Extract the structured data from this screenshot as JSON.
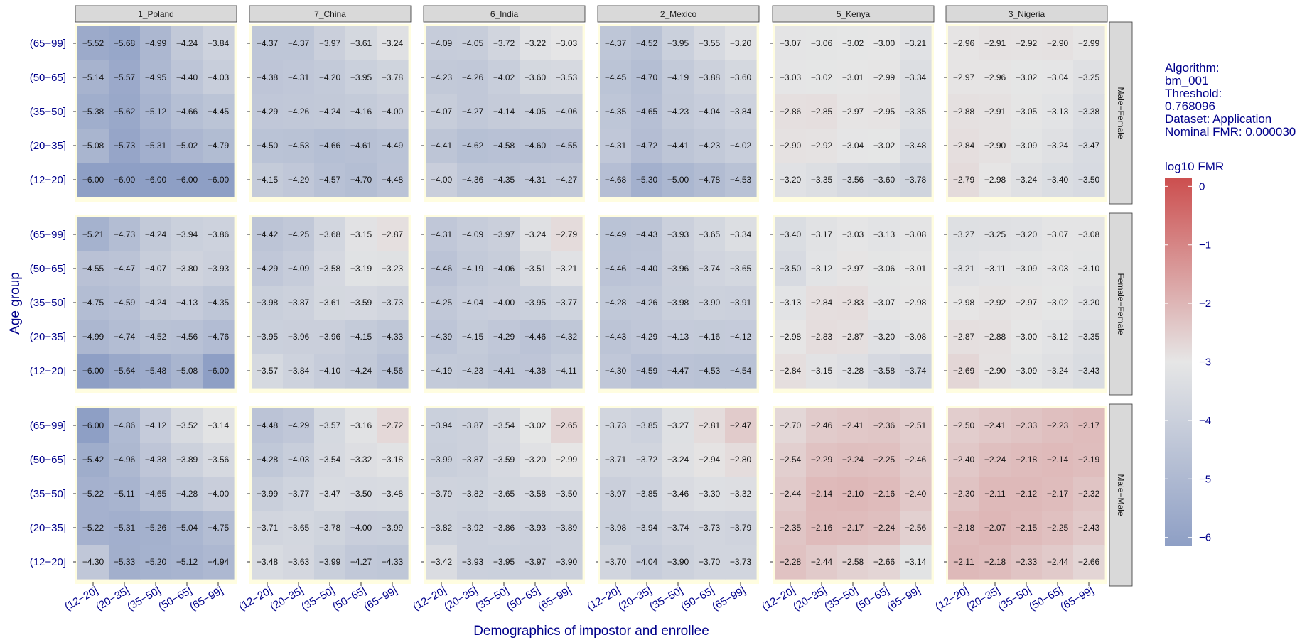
{
  "chart_data": {
    "type": "heatmap",
    "xlabel": "Demographics of impostor and enrollee",
    "ylabel": "Age group",
    "columns": [
      "1_Poland",
      "7_China",
      "6_India",
      "2_Mexico",
      "5_Kenya",
      "3_Nigeria"
    ],
    "rows": [
      "Male−Female",
      "Female−Female",
      "Male−Male"
    ],
    "x_categories": [
      "(12−20]",
      "(20−35]",
      "(35−50]",
      "(50−65]",
      "(65−99]"
    ],
    "y_categories": [
      "(65−99]",
      "(50−65]",
      "(35−50]",
      "(20−35]",
      "(12−20]"
    ],
    "annotation": [
      "Algorithm:",
      "bm_001",
      "Threshold:",
      "0.768096",
      "Dataset: Application",
      "Nominal FMR: 0.000030"
    ],
    "legend": {
      "title": "log10 FMR",
      "ticks": [
        0,
        -1,
        -2,
        -3,
        -4,
        -5,
        -6
      ],
      "range": [
        -6.15,
        0.15
      ],
      "colors": {
        "low": "#8e9fc5",
        "mid": "#e6e6e6",
        "high": "#cc4e4e"
      }
    },
    "values": [
      [
        [
          [
            -5.52,
            -5.68,
            -4.99,
            -4.24,
            -3.84
          ],
          [
            -5.14,
            -5.57,
            -4.95,
            -4.4,
            -4.03
          ],
          [
            -5.38,
            -5.62,
            -5.12,
            -4.66,
            -4.45
          ],
          [
            -5.08,
            -5.73,
            -5.31,
            -5.02,
            -4.79
          ],
          [
            -6.0,
            -6.0,
            -6.0,
            -6.0,
            -6.0
          ]
        ],
        [
          [
            -4.37,
            -4.37,
            -3.97,
            -3.61,
            -3.24
          ],
          [
            -4.38,
            -4.31,
            -4.2,
            -3.95,
            -3.78
          ],
          [
            -4.29,
            -4.26,
            -4.24,
            -4.16,
            -4.0
          ],
          [
            -4.5,
            -4.53,
            -4.66,
            -4.61,
            -4.49
          ],
          [
            -4.15,
            -4.29,
            -4.57,
            -4.7,
            -4.48
          ]
        ],
        [
          [
            -4.09,
            -4.05,
            -3.72,
            -3.22,
            -3.03
          ],
          [
            -4.23,
            -4.26,
            -4.02,
            -3.6,
            -3.53
          ],
          [
            -4.07,
            -4.27,
            -4.14,
            -4.05,
            -4.06
          ],
          [
            -4.41,
            -4.62,
            -4.58,
            -4.6,
            -4.55
          ],
          [
            -4.0,
            -4.36,
            -4.35,
            -4.31,
            -4.27
          ]
        ],
        [
          [
            -4.37,
            -4.52,
            -3.95,
            -3.55,
            -3.2
          ],
          [
            -4.45,
            -4.7,
            -4.19,
            -3.88,
            -3.6
          ],
          [
            -4.35,
            -4.65,
            -4.23,
            -4.04,
            -3.84
          ],
          [
            -4.31,
            -4.72,
            -4.41,
            -4.23,
            -4.02
          ],
          [
            -4.68,
            -5.3,
            -5.0,
            -4.78,
            -4.53
          ]
        ],
        [
          [
            -3.07,
            -3.06,
            -3.02,
            -3.0,
            -3.21
          ],
          [
            -3.03,
            -3.02,
            -3.01,
            -2.99,
            -3.34
          ],
          [
            -2.86,
            -2.85,
            -2.97,
            -2.95,
            -3.35
          ],
          [
            -2.9,
            -2.92,
            -3.04,
            -3.02,
            -3.48
          ],
          [
            -3.2,
            -3.35,
            -3.56,
            -3.6,
            -3.78
          ]
        ],
        [
          [
            -2.96,
            -2.91,
            -2.92,
            -2.9,
            -2.99
          ],
          [
            -2.97,
            -2.96,
            -3.02,
            -3.04,
            -3.25
          ],
          [
            -2.88,
            -2.91,
            -3.05,
            -3.13,
            -3.38
          ],
          [
            -2.84,
            -2.9,
            -3.09,
            -3.24,
            -3.47
          ],
          [
            -2.79,
            -2.98,
            -3.24,
            -3.4,
            -3.5
          ]
        ]
      ],
      [
        [
          [
            -5.21,
            -4.73,
            -4.24,
            -3.94,
            -3.86
          ],
          [
            -4.55,
            -4.47,
            -4.07,
            -3.8,
            -3.93
          ],
          [
            -4.75,
            -4.59,
            -4.24,
            -4.13,
            -4.35
          ],
          [
            -4.99,
            -4.74,
            -4.52,
            -4.56,
            -4.76
          ],
          [
            -6.0,
            -5.64,
            -5.48,
            -5.08,
            -6.0
          ]
        ],
        [
          [
            -4.42,
            -4.25,
            -3.68,
            -3.15,
            -2.87
          ],
          [
            -4.29,
            -4.09,
            -3.58,
            -3.19,
            -3.23
          ],
          [
            -3.98,
            -3.87,
            -3.61,
            -3.59,
            -3.73
          ],
          [
            -3.95,
            -3.96,
            -3.96,
            -4.15,
            -4.33
          ],
          [
            -3.57,
            -3.84,
            -4.1,
            -4.24,
            -4.56
          ]
        ],
        [
          [
            -4.31,
            -4.09,
            -3.97,
            -3.24,
            -2.79
          ],
          [
            -4.46,
            -4.19,
            -4.06,
            -3.51,
            -3.21
          ],
          [
            -4.25,
            -4.04,
            -4.0,
            -3.95,
            -3.77
          ],
          [
            -4.39,
            -4.15,
            -4.29,
            -4.46,
            -4.32
          ],
          [
            -4.19,
            -4.23,
            -4.41,
            -4.38,
            -4.11
          ]
        ],
        [
          [
            -4.49,
            -4.43,
            -3.93,
            -3.65,
            -3.34
          ],
          [
            -4.46,
            -4.4,
            -3.96,
            -3.74,
            -3.65
          ],
          [
            -4.28,
            -4.26,
            -3.98,
            -3.9,
            -3.91
          ],
          [
            -4.43,
            -4.29,
            -4.13,
            -4.16,
            -4.12
          ],
          [
            -4.3,
            -4.59,
            -4.47,
            -4.53,
            -4.54
          ]
        ],
        [
          [
            -3.4,
            -3.17,
            -3.03,
            -3.13,
            -3.08
          ],
          [
            -3.5,
            -3.12,
            -2.97,
            -3.06,
            -3.01
          ],
          [
            -3.13,
            -2.84,
            -2.83,
            -3.07,
            -2.98
          ],
          [
            -2.98,
            -2.83,
            -2.87,
            -3.2,
            -3.08
          ],
          [
            -2.84,
            -3.15,
            -3.28,
            -3.58,
            -3.74
          ]
        ],
        [
          [
            -3.27,
            -3.25,
            -3.2,
            -3.07,
            -3.08
          ],
          [
            -3.21,
            -3.11,
            -3.09,
            -3.03,
            -3.1
          ],
          [
            -2.98,
            -2.92,
            -2.97,
            -3.02,
            -3.2
          ],
          [
            -2.87,
            -2.88,
            -3.0,
            -3.12,
            -3.35
          ],
          [
            -2.69,
            -2.9,
            -3.09,
            -3.24,
            -3.43
          ]
        ]
      ],
      [
        [
          [
            -6.0,
            -4.86,
            -4.12,
            -3.52,
            -3.14
          ],
          [
            -5.42,
            -4.96,
            -4.38,
            -3.89,
            -3.56
          ],
          [
            -5.22,
            -5.11,
            -4.65,
            -4.28,
            -4.0
          ],
          [
            -5.22,
            -5.31,
            -5.26,
            -5.04,
            -4.75
          ],
          [
            -4.3,
            -5.33,
            -5.2,
            -5.12,
            -4.94
          ]
        ],
        [
          [
            -4.48,
            -4.29,
            -3.57,
            -3.16,
            -2.72
          ],
          [
            -4.28,
            -4.03,
            -3.54,
            -3.32,
            -3.18
          ],
          [
            -3.99,
            -3.77,
            -3.47,
            -3.5,
            -3.48
          ],
          [
            -3.71,
            -3.65,
            -3.78,
            -4.0,
            -3.99
          ],
          [
            -3.48,
            -3.63,
            -3.99,
            -4.27,
            -4.33
          ]
        ],
        [
          [
            -3.94,
            -3.87,
            -3.54,
            -3.02,
            -2.65
          ],
          [
            -3.99,
            -3.87,
            -3.59,
            -3.2,
            -2.99
          ],
          [
            -3.79,
            -3.82,
            -3.65,
            -3.58,
            -3.5
          ],
          [
            -3.82,
            -3.92,
            -3.86,
            -3.93,
            -3.89
          ],
          [
            -3.42,
            -3.93,
            -3.95,
            -3.97,
            -3.9
          ]
        ],
        [
          [
            -3.73,
            -3.85,
            -3.27,
            -2.81,
            -2.47
          ],
          [
            -3.71,
            -3.72,
            -3.24,
            -2.94,
            -2.8
          ],
          [
            -3.97,
            -3.85,
            -3.46,
            -3.3,
            -3.32
          ],
          [
            -3.98,
            -3.94,
            -3.74,
            -3.73,
            -3.79
          ],
          [
            -3.7,
            -4.04,
            -3.9,
            -3.7,
            -3.73
          ]
        ],
        [
          [
            -2.7,
            -2.46,
            -2.41,
            -2.36,
            -2.51
          ],
          [
            -2.54,
            -2.29,
            -2.24,
            -2.25,
            -2.46
          ],
          [
            -2.44,
            -2.14,
            -2.1,
            -2.16,
            -2.4
          ],
          [
            -2.35,
            -2.16,
            -2.17,
            -2.24,
            -2.56
          ],
          [
            -2.28,
            -2.44,
            -2.58,
            -2.66,
            -3.14
          ]
        ],
        [
          [
            -2.5,
            -2.41,
            -2.33,
            -2.23,
            -2.17
          ],
          [
            -2.4,
            -2.24,
            -2.18,
            -2.14,
            -2.19
          ],
          [
            -2.3,
            -2.11,
            -2.12,
            -2.17,
            -2.32
          ],
          [
            -2.18,
            -2.07,
            -2.15,
            -2.25,
            -2.43
          ],
          [
            -2.11,
            -2.18,
            -2.33,
            -2.44,
            -2.66
          ]
        ]
      ]
    ]
  }
}
